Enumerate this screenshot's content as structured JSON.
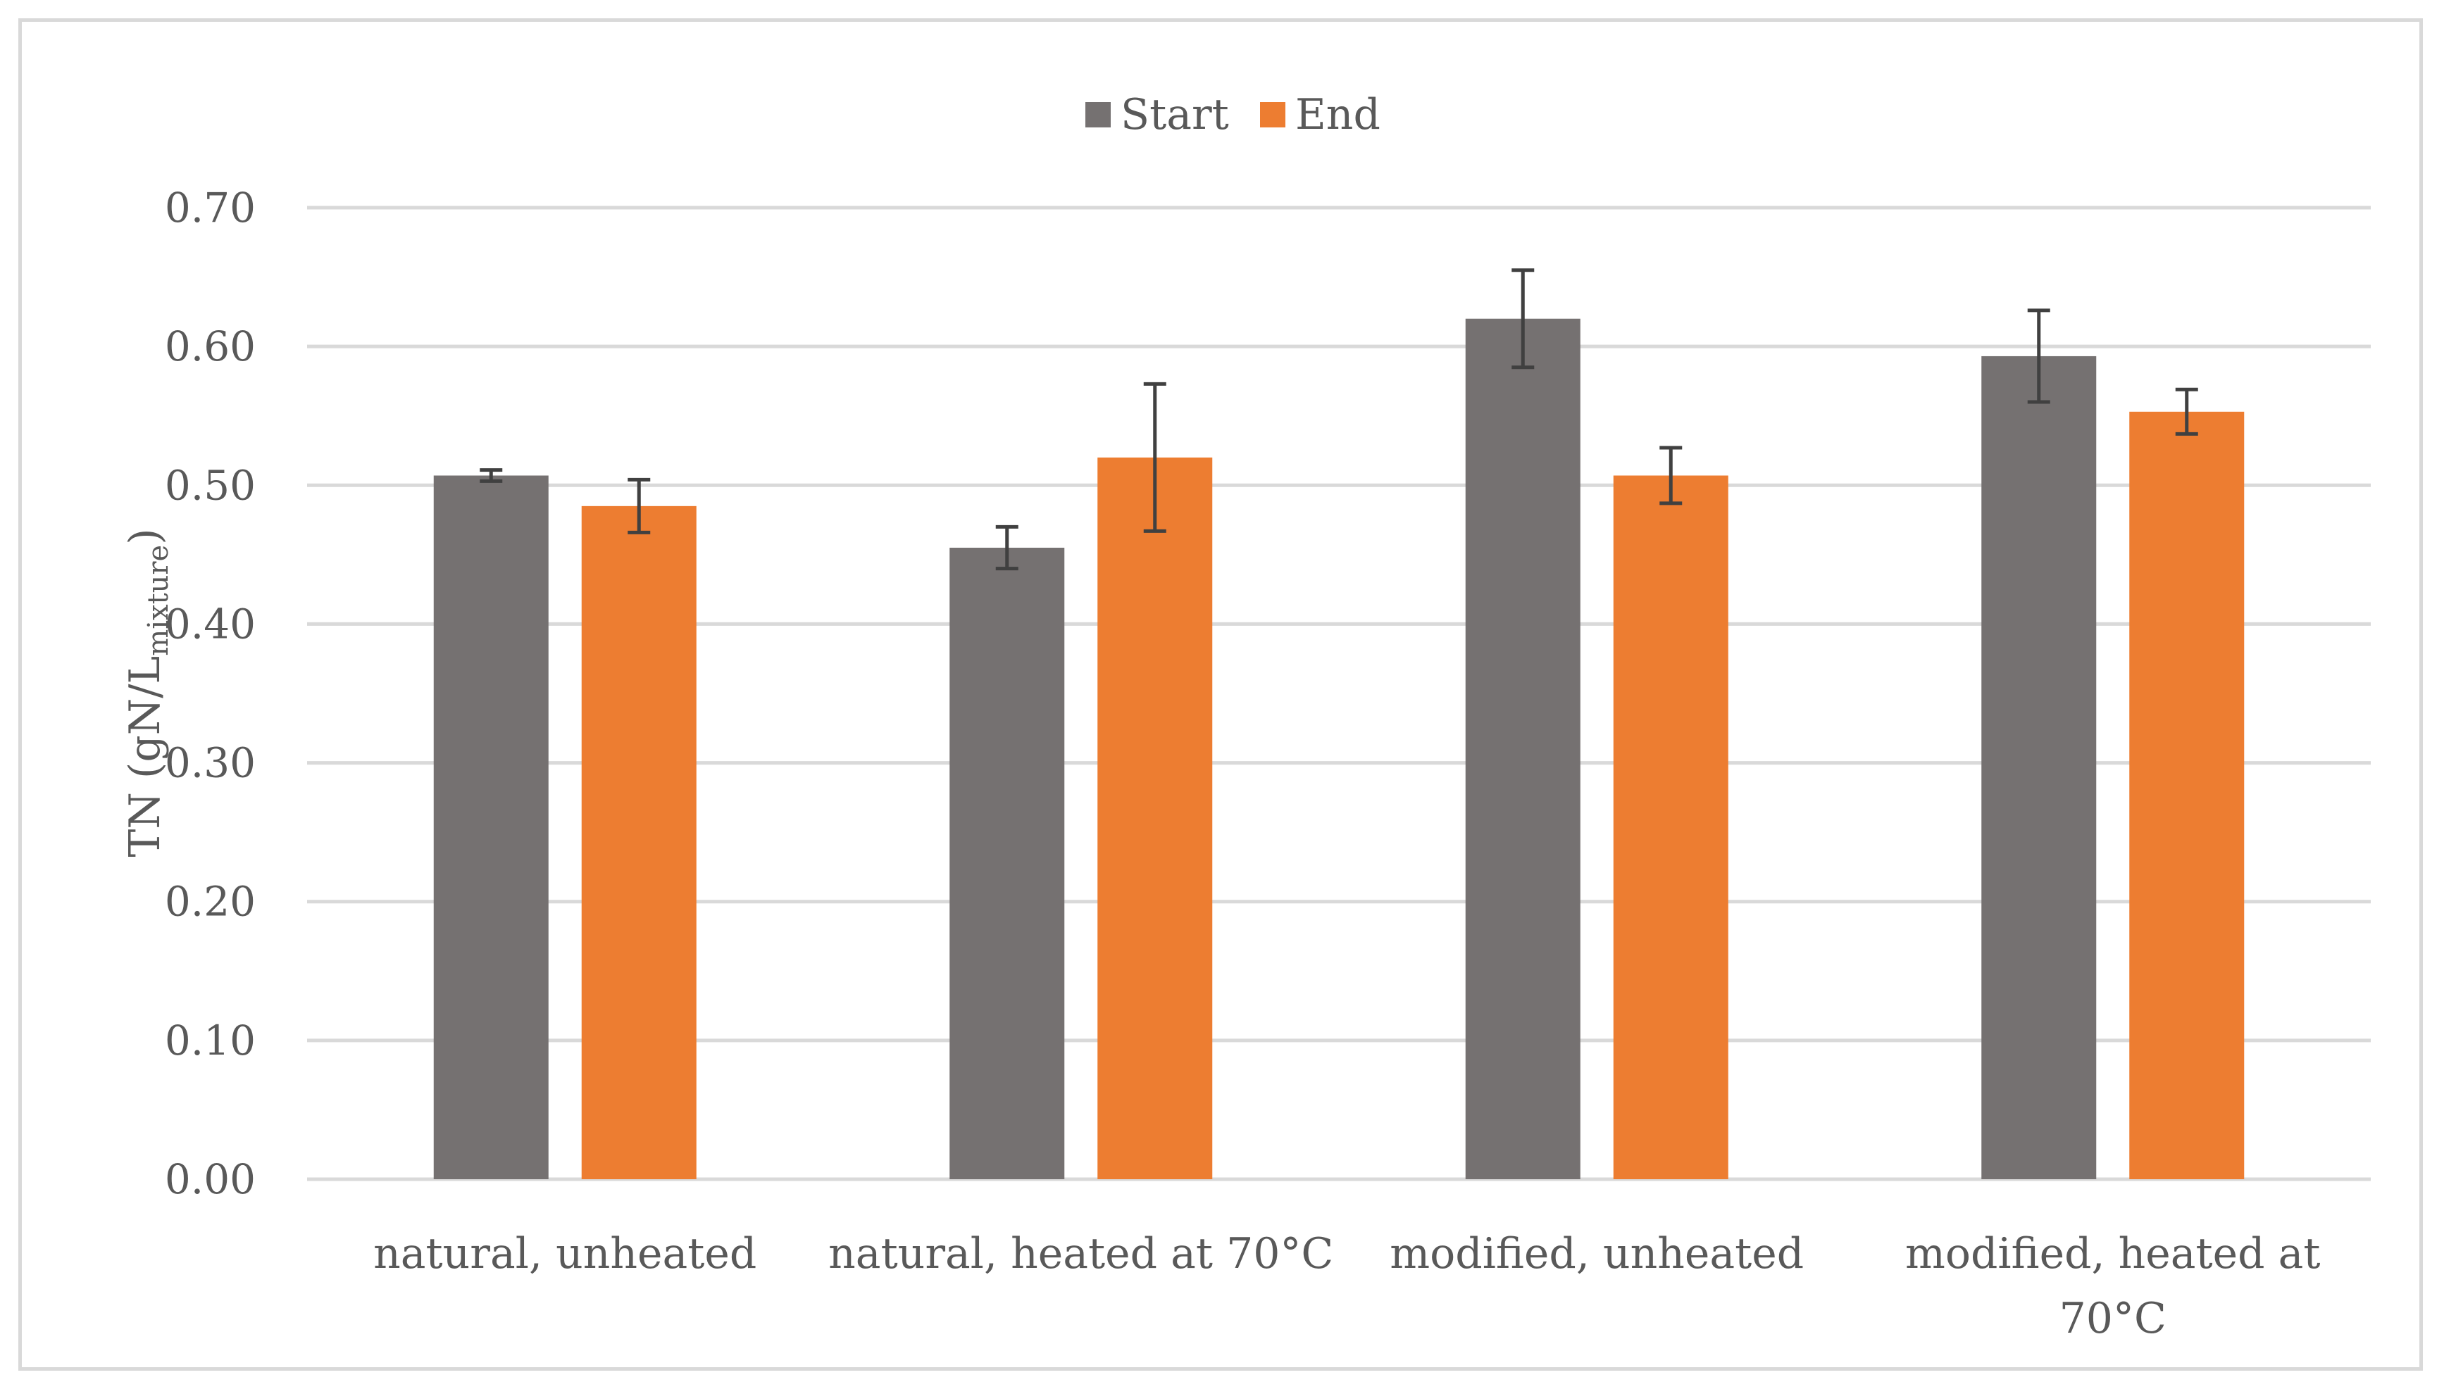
{
  "chart_data": {
    "type": "bar",
    "title": "",
    "xlabel": "",
    "ylabel": "TN (gN/L",
    "ylabel_subscript": "mixture",
    "ylabel_close": ")",
    "ylim": [
      0,
      0.7
    ],
    "yticks": [
      "0.00",
      "0.10",
      "0.20",
      "0.30",
      "0.40",
      "0.50",
      "0.60",
      "0.70"
    ],
    "ytick_values": [
      0,
      0.1,
      0.2,
      0.3,
      0.4,
      0.5,
      0.6,
      0.7
    ],
    "grid": true,
    "legend_position": "top-center",
    "categories": [
      [
        "natural, unheated"
      ],
      [
        "natural, heated at 70°C"
      ],
      [
        "modified, unheated"
      ],
      [
        "modified, heated at",
        "70°C"
      ]
    ],
    "series": [
      {
        "name": "Start",
        "color": "#757171",
        "values": [
          0.507,
          0.455,
          0.62,
          0.593
        ],
        "errors": [
          0.004,
          0.015,
          0.035,
          0.033
        ]
      },
      {
        "name": "End",
        "color": "#ed7d31",
        "values": [
          0.485,
          0.52,
          0.507,
          0.553
        ],
        "errors": [
          0.019,
          0.053,
          0.02,
          0.016
        ]
      }
    ],
    "colors": {
      "grid": "#d9d9d9",
      "text": "#595959",
      "error_bar": "#404040"
    }
  }
}
